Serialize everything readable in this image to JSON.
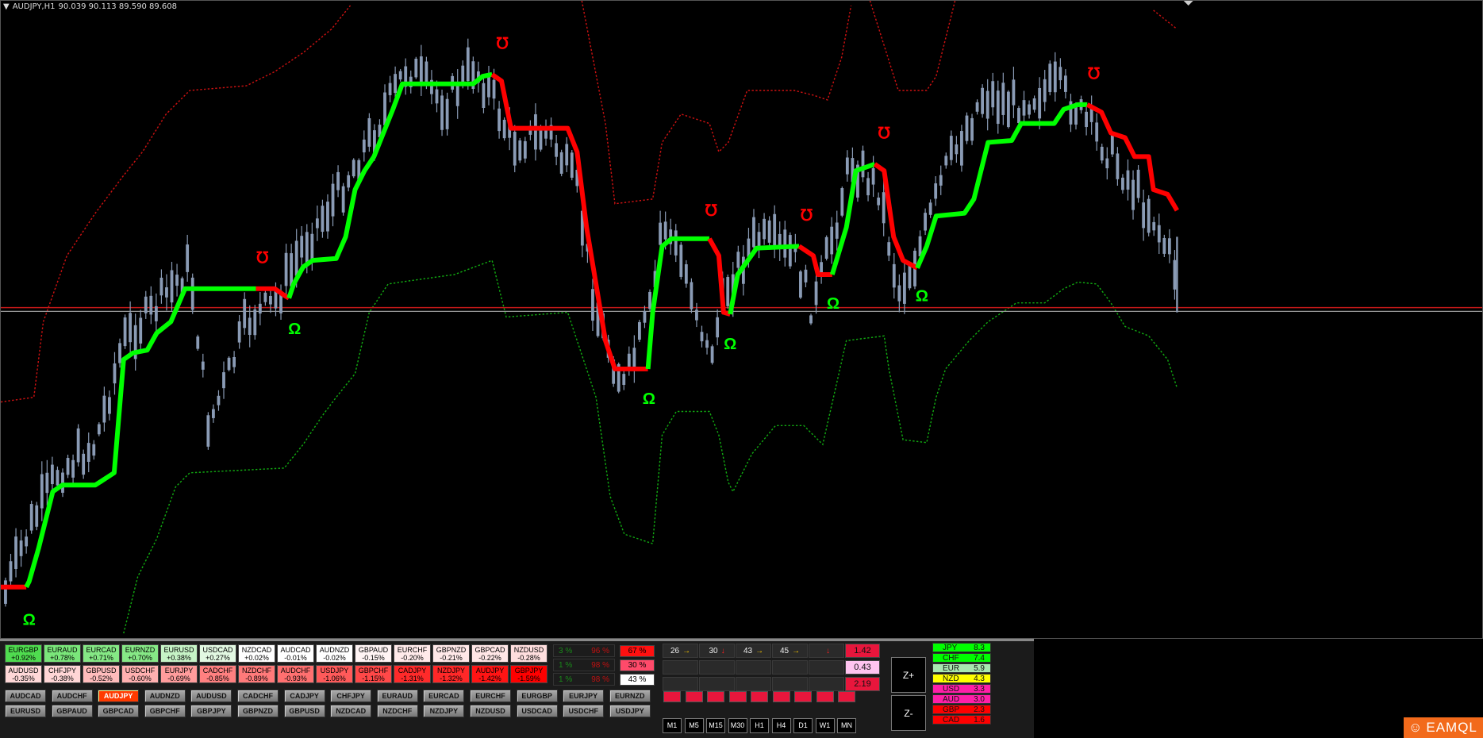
{
  "chart": {
    "symbol": "AUDJPY,H1",
    "ohlc": "90.039 90.113 89.590 89.608",
    "colors": {
      "up_trend": "#00ff00",
      "down_trend": "#ff0000",
      "candles": "#8a9bb5",
      "upper_band": "#cc1111",
      "lower_band": "#11aa11"
    }
  },
  "strength_tiles": [
    [
      {
        "pair": "EURGBP",
        "chg": "+0.92%",
        "color": "#4fdc4f"
      },
      {
        "pair": "EURAUD",
        "chg": "+0.78%",
        "color": "#7ae67a"
      },
      {
        "pair": "EURCAD",
        "chg": "+0.71%",
        "color": "#85e885"
      },
      {
        "pair": "EURNZD",
        "chg": "+0.70%",
        "color": "#86e886"
      },
      {
        "pair": "EURUSD",
        "chg": "+0.38%",
        "color": "#c6f3c6"
      },
      {
        "pair": "USDCAD",
        "chg": "+0.27%",
        "color": "#e2f8e2"
      },
      {
        "pair": "NZDCAD",
        "chg": "+0.02%",
        "color": "#ffffff"
      },
      {
        "pair": "AUDCAD",
        "chg": "-0.01%",
        "color": "#ffffff"
      },
      {
        "pair": "AUDNZD",
        "chg": "-0.02%",
        "color": "#ffffff"
      },
      {
        "pair": "GBPAUD",
        "chg": "-0.15%",
        "color": "#fff4f4"
      },
      {
        "pair": "EURCHF",
        "chg": "-0.20%",
        "color": "#ffeaea"
      },
      {
        "pair": "GBPNZD",
        "chg": "-0.21%",
        "color": "#ffe8e8"
      },
      {
        "pair": "GBPCAD",
        "chg": "-0.22%",
        "color": "#ffe6e6"
      },
      {
        "pair": "NZDUSD",
        "chg": "-0.28%",
        "color": "#ffdede"
      }
    ],
    [
      {
        "pair": "AUDUSD",
        "chg": "-0.35%",
        "color": "#ffd8d8"
      },
      {
        "pair": "CHFJPY",
        "chg": "-0.38%",
        "color": "#ffd6d6"
      },
      {
        "pair": "GBPUSD",
        "chg": "-0.52%",
        "color": "#ffbcbc"
      },
      {
        "pair": "USDCHF",
        "chg": "-0.60%",
        "color": "#ffb0b0"
      },
      {
        "pair": "EURJPY",
        "chg": "-0.69%",
        "color": "#ff9c9c"
      },
      {
        "pair": "CADCHF",
        "chg": "-0.85%",
        "color": "#ff8080"
      },
      {
        "pair": "NZDCHF",
        "chg": "-0.89%",
        "color": "#ff7a7a"
      },
      {
        "pair": "AUDCHF",
        "chg": "-0.93%",
        "color": "#ff7070"
      },
      {
        "pair": "USDJPY",
        "chg": "-1.06%",
        "color": "#ff5a5a"
      },
      {
        "pair": "GBPCHF",
        "chg": "-1.15%",
        "color": "#ff4848"
      },
      {
        "pair": "CADJPY",
        "chg": "-1.31%",
        "color": "#ff2a2a"
      },
      {
        "pair": "NZDJPY",
        "chg": "-1.32%",
        "color": "#ff2828"
      },
      {
        "pair": "AUDJPY",
        "chg": "-1.42%",
        "color": "#ff1414"
      },
      {
        "pair": "GBPJPY",
        "chg": "-1.59%",
        "color": "#ff0000"
      }
    ]
  ],
  "symbol_buttons": [
    [
      "AUDCAD",
      "AUDCHF",
      "AUDJPY",
      "AUDNZD",
      "AUDUSD",
      "CADCHF",
      "CADJPY",
      "CHFJPY",
      "EURAUD",
      "EURCAD",
      "EURCHF",
      "EURGBP",
      "EURJPY",
      "EURNZD"
    ],
    [
      "EURUSD",
      "GBPAUD",
      "GBPCAD",
      "GBPCHF",
      "GBPJPY",
      "GBPNZD",
      "GBPUSD",
      "NZDCAD",
      "NZDCHF",
      "NZDJPY",
      "NZDUSD",
      "USDCAD",
      "USDCHF",
      "USDJPY"
    ]
  ],
  "active_symbol": "AUDJPY",
  "percent_rows": [
    {
      "left": "3 %",
      "right": "96 %"
    },
    {
      "left": "1 %",
      "right": "98 %"
    },
    {
      "left": "1 %",
      "right": "98 %"
    }
  ],
  "percent_boxes": [
    {
      "text": "67 %",
      "color": "#ff1010"
    },
    {
      "text": "30 %",
      "color": "#ff4a6a"
    },
    {
      "text": "43 %",
      "color": "#ffffff"
    }
  ],
  "signal_cells": [
    {
      "num": "26",
      "arrow": "→",
      "arrow_color": "#f5c400"
    },
    {
      "num": "30",
      "arrow": "↓",
      "arrow_color": "#ff2020"
    },
    {
      "num": "43",
      "arrow": "→",
      "arrow_color": "#f5c400"
    },
    {
      "num": "45",
      "arrow": "→",
      "arrow_color": "#f5c400"
    },
    {
      "num": "",
      "arrow": "↓",
      "arrow_color": "#ff2020"
    }
  ],
  "values": [
    {
      "text": "1.42",
      "color": "#e8163c"
    },
    {
      "text": "0.43",
      "color": "#ffc4f0"
    },
    {
      "text": "2.19",
      "color": "#e8163c"
    }
  ],
  "red_squares": 9,
  "timeframes": [
    "M1",
    "M5",
    "M15",
    "M30",
    "H1",
    "H4",
    "D1",
    "W1",
    "MN"
  ],
  "zoom": {
    "in": "Z+",
    "out": "Z-"
  },
  "currency_strength": [
    {
      "cur": "JPY",
      "val": "8.3",
      "color": "#00ff00"
    },
    {
      "cur": "CHF",
      "val": "7.4",
      "color": "#00ff00"
    },
    {
      "cur": "EUR",
      "val": "5.9",
      "color": "#a8e8b0"
    },
    {
      "cur": "NZD",
      "val": "4.3",
      "color": "#ffff00"
    },
    {
      "cur": "USD",
      "val": "3.3",
      "color": "#ff1fa8"
    },
    {
      "cur": "AUD",
      "val": "3.0",
      "color": "#ff1fa8"
    },
    {
      "cur": "GBP",
      "val": "2.3",
      "color": "#ff0000"
    },
    {
      "cur": "CAD",
      "val": "1.6",
      "color": "#ff0000"
    }
  ],
  "logo": "EAMQL"
}
